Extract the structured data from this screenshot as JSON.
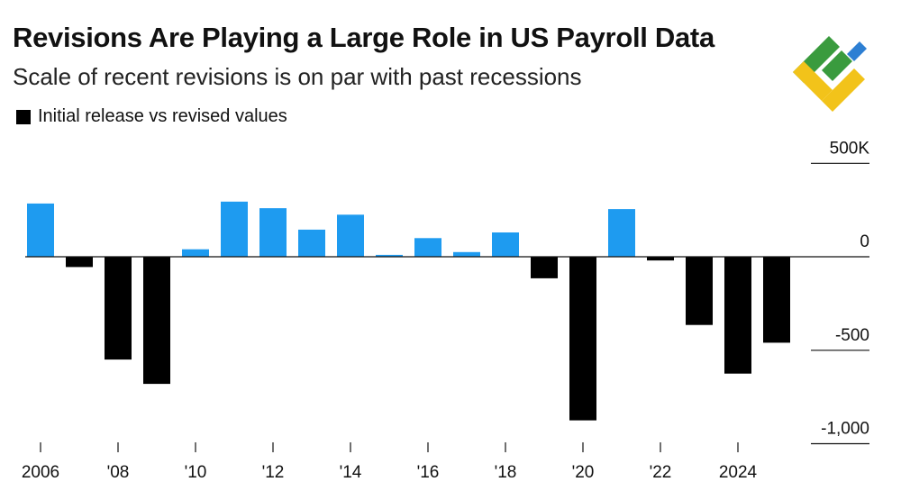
{
  "header": {
    "title": "Revisions Are Playing a Large Role in US Payroll Data",
    "subtitle": "Scale of recent revisions is on par with past recessions"
  },
  "legend": {
    "label": "Initial release vs revised values",
    "color": "#000000"
  },
  "colors": {
    "positive": "#1e9bf0",
    "negative": "#000000",
    "logo_green": "#3a9b3e",
    "logo_yellow": "#f2c31a",
    "logo_blue": "#2d7fd3"
  },
  "chart_data": {
    "type": "bar",
    "title": "Revisions Are Playing a Large Role in US Payroll Data",
    "subtitle": "Scale of recent revisions is on par with past recessions",
    "xlabel": "",
    "ylabel": "",
    "ylim": [
      -1000,
      500
    ],
    "y_ticks": [
      500,
      0,
      -500,
      -1000
    ],
    "y_tick_labels": [
      "500K",
      "0",
      "-500",
      "-1,000"
    ],
    "x_ticks": [
      2006,
      2008,
      2010,
      2012,
      2014,
      2016,
      2018,
      2020,
      2022,
      2024
    ],
    "x_tick_labels": [
      "2006",
      "'08",
      "'10",
      "'12",
      "'14",
      "'16",
      "'18",
      "'20",
      "'22",
      "2024"
    ],
    "categories": [
      2006,
      2007,
      2008,
      2009,
      2010,
      2011,
      2012,
      2013,
      2014,
      2015,
      2016,
      2017,
      2018,
      2019,
      2020,
      2021,
      2022,
      2023,
      2024,
      2025
    ],
    "values": [
      285,
      -55,
      -550,
      -680,
      40,
      295,
      260,
      145,
      225,
      10,
      100,
      25,
      130,
      -115,
      -875,
      255,
      -20,
      -365,
      -625,
      -460
    ],
    "legend": [
      "Initial release vs revised values"
    ],
    "legend_position": "top-left",
    "grid": false
  }
}
